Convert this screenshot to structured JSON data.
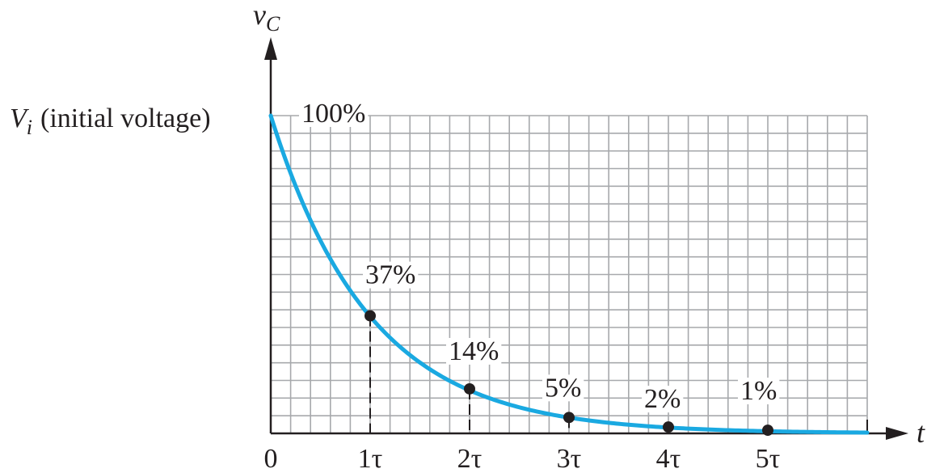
{
  "chart_data": {
    "type": "line",
    "title": "",
    "xlabel": "t",
    "ylabel_symbol": "v",
    "ylabel_subscript": "C",
    "y_start_symbol": "V",
    "y_start_subscript": "i",
    "y_start_text": "(initial voltage)",
    "x_ticks": [
      {
        "value": 0,
        "label": "0"
      },
      {
        "value": 1,
        "label": "1τ"
      },
      {
        "value": 2,
        "label": "2τ"
      },
      {
        "value": 3,
        "label": "3τ"
      },
      {
        "value": 4,
        "label": "4τ"
      },
      {
        "value": 5,
        "label": "5τ"
      }
    ],
    "xlim": [
      0,
      6
    ],
    "ylim": [
      0,
      100
    ],
    "grid": true,
    "series": [
      {
        "curve": "exponential decay",
        "color": "#1aa9e1",
        "points": [
          {
            "x": 0,
            "y": 100,
            "label": "100%"
          },
          {
            "x": 1,
            "y": 37,
            "label": "37%"
          },
          {
            "x": 2,
            "y": 14,
            "label": "14%"
          },
          {
            "x": 3,
            "y": 5,
            "label": "5%"
          },
          {
            "x": 4,
            "y": 2,
            "label": "2%"
          },
          {
            "x": 5,
            "y": 1,
            "label": "1%"
          }
        ]
      }
    ],
    "colors": {
      "axis": "#231f20",
      "grid": "#a7a9ac",
      "curve": "#1aa9e1",
      "marker": "#231f20"
    }
  }
}
